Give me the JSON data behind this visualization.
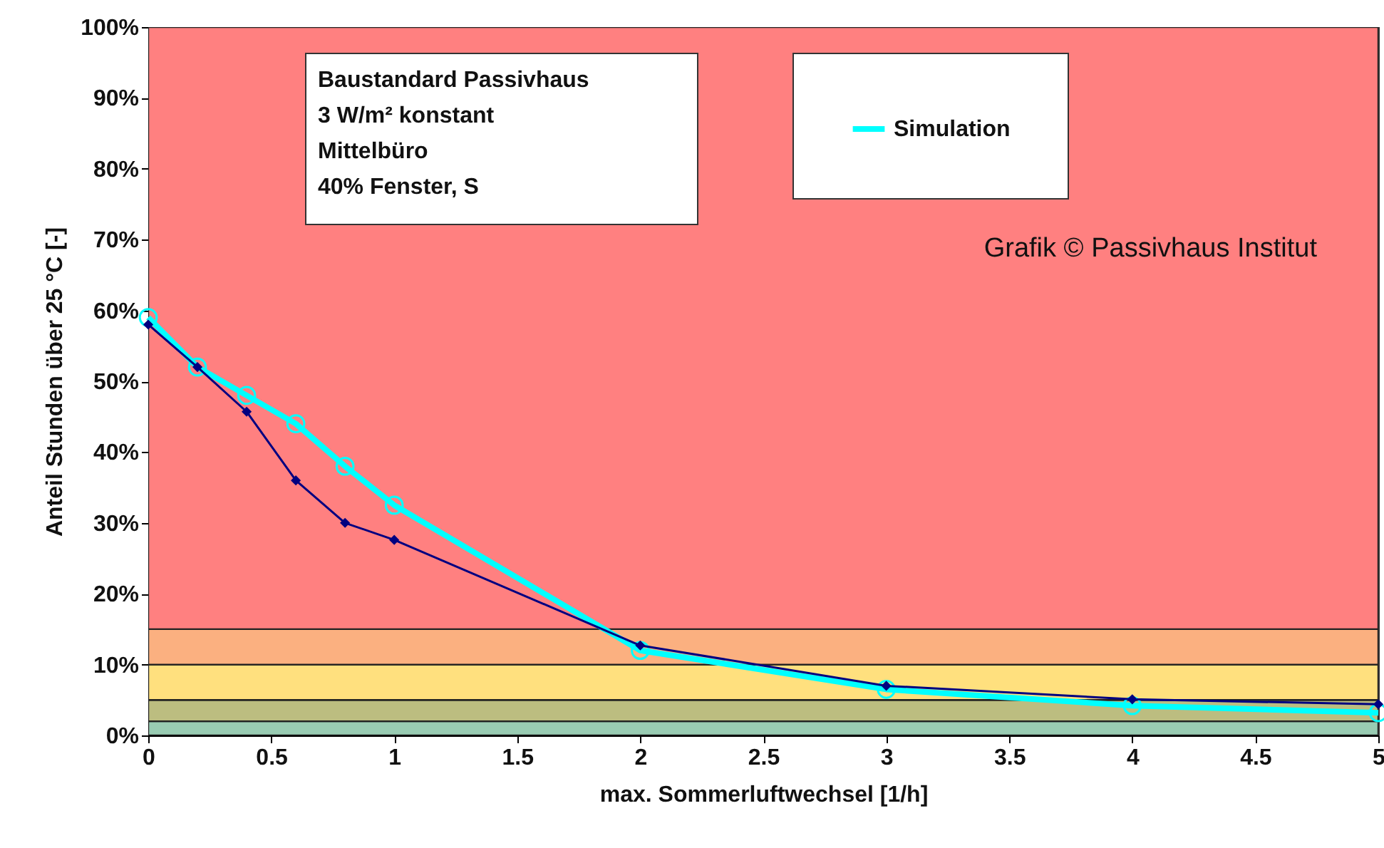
{
  "chart_data": {
    "type": "line",
    "xlabel": "max. Sommerluftwechsel [1/h]",
    "ylabel": "Anteil Stunden über 25 °C [-]",
    "annotations": [
      "Baustandard Passivhaus\n3 W/m² konstant\nMittelbüro\n40% Fenster, S",
      "Grafik © Passivhaus Institut"
    ],
    "x": [
      0,
      0.2,
      0.4,
      0.6,
      0.8,
      1,
      2,
      3,
      4,
      5
    ],
    "series": [
      {
        "name": "Simulation",
        "color": "#00ffff",
        "marker": "circle",
        "values": [
          59,
          52,
          48,
          44,
          38,
          32.5,
          12,
          6.5,
          4.2,
          3.2
        ]
      },
      {
        "color": "#000080",
        "marker": "diamond",
        "values": [
          58,
          52,
          45.7,
          36,
          30,
          27.6,
          12.7,
          7,
          5.1,
          4.4
        ]
      }
    ],
    "xlim": [
      0,
      5
    ],
    "xticks": [
      0,
      0.5,
      1,
      1.5,
      2,
      2.5,
      3,
      3.5,
      4,
      4.5,
      5
    ],
    "ylim": [
      0,
      100
    ],
    "yticks": [
      {
        "value": 0,
        "label": "0%"
      },
      {
        "value": 10,
        "label": "10%"
      },
      {
        "value": 20,
        "label": "20%"
      },
      {
        "value": 30,
        "label": "30%"
      },
      {
        "value": 40,
        "label": "40%"
      },
      {
        "value": 50,
        "label": "50%"
      },
      {
        "value": 60,
        "label": "60%"
      },
      {
        "value": 70,
        "label": "70%"
      },
      {
        "value": 80,
        "label": "80%"
      },
      {
        "value": 90,
        "label": "90%"
      },
      {
        "value": 100,
        "label": "100%"
      }
    ],
    "bands": [
      {
        "axis": "y",
        "from": 0,
        "to": 2,
        "color": "#99ccb3"
      },
      {
        "axis": "y",
        "from": 2,
        "to": 5,
        "color": "#bcbd80"
      },
      {
        "axis": "y",
        "from": 5,
        "to": 10,
        "color": "#ffe07e"
      },
      {
        "axis": "y",
        "from": 10,
        "to": 15,
        "color": "#fbb080"
      },
      {
        "axis": "y",
        "from": 15,
        "to": 100,
        "color": "#ff8080"
      }
    ],
    "grid": false,
    "legend": "top right"
  }
}
